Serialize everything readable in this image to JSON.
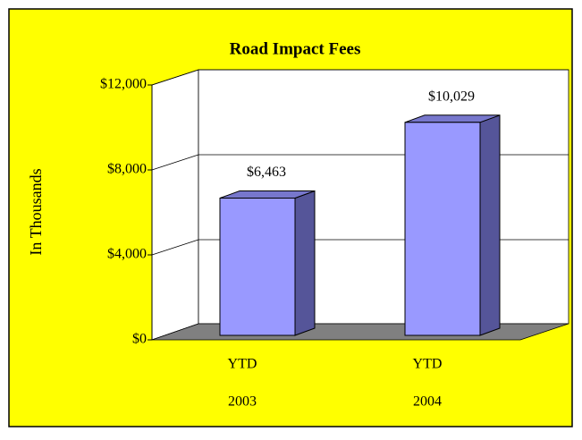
{
  "chart_data": {
    "type": "bar3d",
    "title": "Road Impact Fees",
    "ylabel": "In Thousands",
    "categories": [
      [
        "YTD",
        "2003"
      ],
      [
        "YTD",
        "2004"
      ]
    ],
    "values": [
      6463,
      10029
    ],
    "value_labels": [
      "$6,463",
      "$10,029"
    ],
    "color": "#9999ff",
    "ylim": [
      0,
      12000
    ],
    "yticks": [
      {
        "value": 0,
        "label": "$0"
      },
      {
        "value": 4000,
        "label": "$4,000"
      },
      {
        "value": 8000,
        "label": "$8,000"
      },
      {
        "value": 12000,
        "label": "$12,000"
      }
    ],
    "grid": true
  }
}
